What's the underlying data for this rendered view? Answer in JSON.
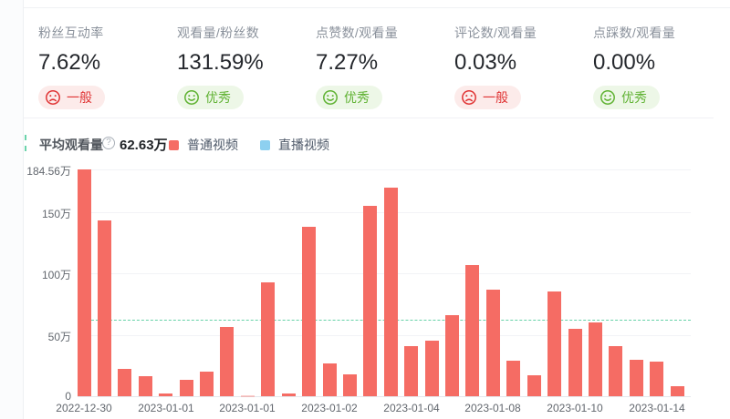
{
  "metrics": [
    {
      "label": "粉丝互动率",
      "value": "7.62%",
      "rating": "一般",
      "sentiment": "bad"
    },
    {
      "label": "观看量/粉丝数",
      "value": "131.59%",
      "rating": "优秀",
      "sentiment": "good"
    },
    {
      "label": "点赞数/观看量",
      "value": "7.27%",
      "rating": "优秀",
      "sentiment": "good"
    },
    {
      "label": "评论数/观看量",
      "value": "0.03%",
      "rating": "一般",
      "sentiment": "bad"
    },
    {
      "label": "点踩数/观看量",
      "value": "0.00%",
      "rating": "优秀",
      "sentiment": "good"
    }
  ],
  "rating_colors": {
    "bad_text": "#e03434",
    "bad_bg": "#fcebea",
    "good_text": "#5fb232",
    "good_bg": "#edf7e7"
  },
  "chart_data": {
    "type": "bar",
    "title": "",
    "unit": "万",
    "average": {
      "label": "平均观看量",
      "value": 62.63,
      "display": "62.63万"
    },
    "legend": [
      {
        "name": "普通视频",
        "color": "#f56c64"
      },
      {
        "name": "直播视频",
        "color": "#8dd0f0"
      }
    ],
    "series": [
      {
        "name": "普通视频",
        "color": "#f56c64",
        "values": [
          184.56,
          143,
          22,
          16,
          2.5,
          13,
          20,
          56,
          1,
          93,
          2,
          138,
          27,
          18,
          155,
          170,
          41,
          45,
          66,
          107,
          87,
          29,
          17,
          85,
          55,
          60,
          41,
          30,
          28,
          8
        ]
      }
    ],
    "x_tick_labels": [
      {
        "index": 0,
        "label": "2022-12-30"
      },
      {
        "index": 4,
        "label": "2023-01-01"
      },
      {
        "index": 8,
        "label": "2023-01-01"
      },
      {
        "index": 12,
        "label": "2023-01-02"
      },
      {
        "index": 16,
        "label": "2023-01-04"
      },
      {
        "index": 20,
        "label": "2023-01-08"
      },
      {
        "index": 24,
        "label": "2023-01-10"
      },
      {
        "index": 28,
        "label": "2023-01-14"
      }
    ],
    "y_ticks": [
      {
        "value": 0,
        "label": "0"
      },
      {
        "value": 50,
        "label": "50万"
      },
      {
        "value": 100,
        "label": "100万"
      },
      {
        "value": 150,
        "label": "150万"
      },
      {
        "value": 184.56,
        "label": "184.56万"
      }
    ],
    "ylim": [
      0,
      184.56
    ],
    "grid": true,
    "legend_position": "top",
    "average_line_color": "#66d1a8"
  }
}
